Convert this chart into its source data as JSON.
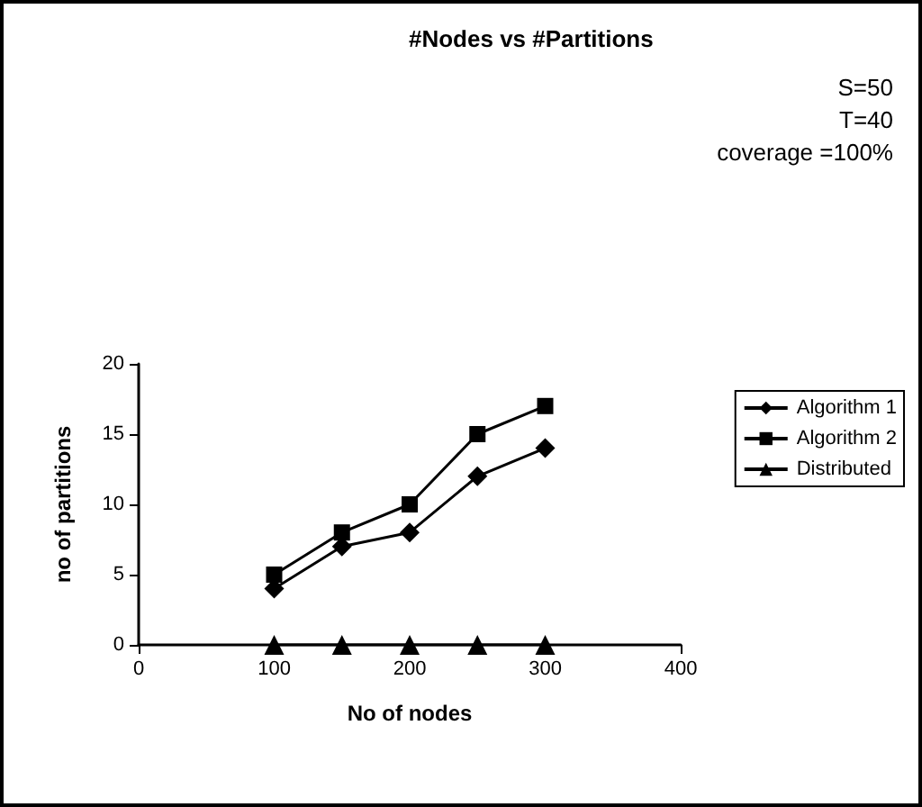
{
  "chart_data": {
    "type": "line",
    "title": "#Nodes vs #Partitions",
    "annotations": [
      "S=50",
      "T=40",
      "coverage =100%"
    ],
    "xlabel": "No of nodes",
    "ylabel": "no of partitions",
    "x": [
      100,
      150,
      200,
      250,
      300
    ],
    "series": [
      {
        "name": "Algorithm 1",
        "color": "#000000",
        "marker": "diamond",
        "values": [
          4,
          7,
          8,
          12,
          14
        ]
      },
      {
        "name": "Algorithm 2",
        "color": "#000000",
        "marker": "square",
        "values": [
          5,
          8,
          10,
          15,
          17
        ]
      },
      {
        "name": "Distributed",
        "color": "#000000",
        "marker": "triangle",
        "values": [
          0,
          0,
          0,
          0,
          0
        ]
      }
    ],
    "xlim": [
      0,
      400
    ],
    "xticks": [
      0,
      100,
      200,
      300,
      400
    ],
    "ylim": [
      0,
      20
    ],
    "yticks": [
      0,
      5,
      10,
      15,
      20
    ],
    "grid": false,
    "legend": "right",
    "line_style": "solid"
  }
}
